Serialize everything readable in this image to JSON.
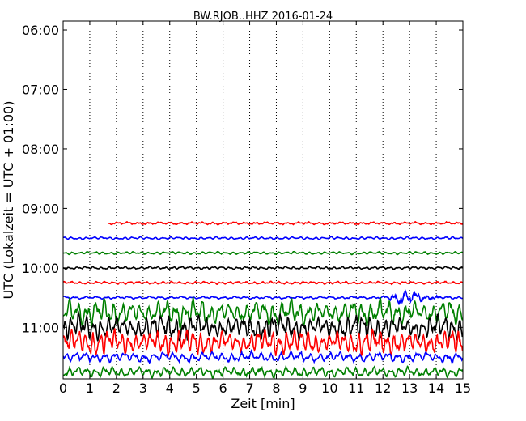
{
  "chart_data": {
    "type": "line",
    "title": "BW.RJOB..HHZ 2016-01-24",
    "xlabel": "Zeit  [min]",
    "ylabel": "UTC (Lokalzeit = UTC + 01:00)",
    "xlim": [
      0,
      15
    ],
    "x_ticks": [
      0,
      1,
      2,
      3,
      4,
      5,
      6,
      7,
      8,
      9,
      10,
      11,
      12,
      13,
      14,
      15
    ],
    "y_ticks": [
      "06:00",
      "07:00",
      "08:00",
      "09:00",
      "10:00",
      "11:00"
    ],
    "y_tick_minutes": [
      360,
      420,
      480,
      540,
      600,
      660
    ],
    "y_range_minutes": [
      351,
      712
    ],
    "grid": "vertical dotted at each minute",
    "traces": [
      {
        "start": "09:15",
        "color": "#ff0000",
        "x_start": 1.7,
        "amplitude": "small"
      },
      {
        "start": "09:30",
        "color": "#0000ff",
        "x_start": 0,
        "amplitude": "small"
      },
      {
        "start": "09:45",
        "color": "#008000",
        "x_start": 0,
        "amplitude": "small"
      },
      {
        "start": "10:00",
        "color": "#000000",
        "x_start": 0,
        "amplitude": "small"
      },
      {
        "start": "10:15",
        "color": "#ff0000",
        "x_start": 0,
        "amplitude": "small"
      },
      {
        "start": "10:30",
        "color": "#0000ff",
        "x_start": 0,
        "amplitude": "small, burst near 12-14 min"
      },
      {
        "start": "10:45",
        "color": "#008000",
        "x_start": 0,
        "amplitude": "large"
      },
      {
        "start": "11:00",
        "color": "#000000",
        "x_start": 0,
        "amplitude": "large"
      },
      {
        "start": "11:15",
        "color": "#ff0000",
        "x_start": 0,
        "amplitude": "large"
      },
      {
        "start": "11:30",
        "color": "#0000ff",
        "x_start": 0,
        "amplitude": "medium"
      },
      {
        "start": "11:45",
        "color": "#008000",
        "x_start": 0,
        "amplitude": "medium"
      }
    ]
  }
}
